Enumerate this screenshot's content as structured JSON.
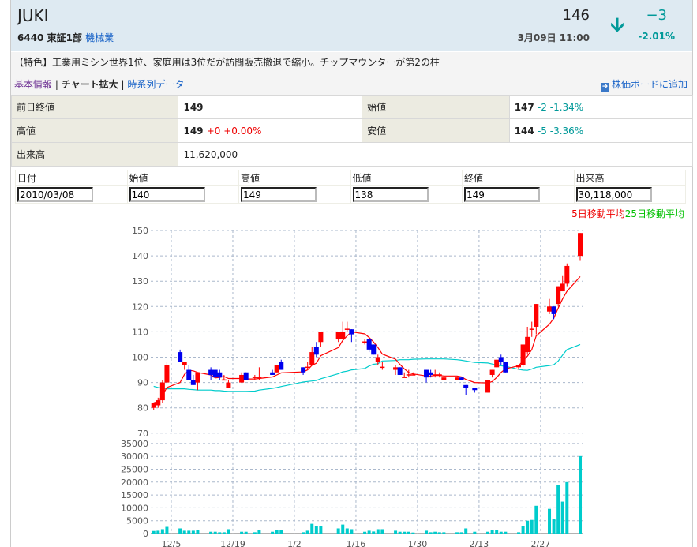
{
  "header": {
    "name": "JUKI",
    "code": "6440",
    "market": "東証1部",
    "industry": "機械業",
    "price": "146",
    "time": "3月09日 11:00",
    "change": "−3",
    "change_pct": "-2.01%",
    "direction_icon": "arrow-down-icon"
  },
  "description": "【特色】工業用ミシン世界1位、家庭用は3位だが訪問販売撤退で縮小。チップマウンターが第2の柱",
  "links": {
    "basic": "基本情報",
    "sep1": "|",
    "chart": "チャート拡大",
    "sep2": "|",
    "timeseries": "時系列データ",
    "add_board": "株価ボードに追加"
  },
  "info": {
    "prev_close_label": "前日終値",
    "prev_close": "149",
    "open_label": "始値",
    "open": "147",
    "open_chg": "-2 -1.34%",
    "high_label": "高値",
    "high": "149",
    "high_chg": "+0 +0.00%",
    "low_label": "安値",
    "low": "144",
    "low_chg": "-5 -3.36%",
    "volume_label": "出来高",
    "volume": "11,620,000"
  },
  "form": {
    "headers": [
      "日付",
      "始値",
      "高値",
      "低値",
      "終値",
      "出来高"
    ],
    "values": [
      "2010/03/08",
      "140",
      "149",
      "138",
      "149",
      "30,118,000"
    ]
  },
  "legend": {
    "ma5": "5日移動平均",
    "ma25": "25日移動平均"
  },
  "colors": {
    "up": "#ff0000",
    "down": "#0000ee",
    "ma5": "#ff0000",
    "ma25": "#00cccc",
    "volume": "#00cccc",
    "accent": "#009999"
  },
  "chart_data": {
    "type": "candlestick",
    "price_axis": {
      "min": 70,
      "max": 150,
      "step": 10,
      "ticks": [
        "150",
        "140",
        "130",
        "120",
        "110",
        "100",
        "90",
        "80",
        "70"
      ]
    },
    "volume_axis": {
      "min": 0,
      "max": 35000,
      "step": 5000,
      "ticks": [
        "35000",
        "30000",
        "25000",
        "20000",
        "15000",
        "10000",
        "5000",
        "0"
      ]
    },
    "x_ticks": [
      "12/5",
      "12/19",
      "1/2",
      "1/16",
      "1/30",
      "2/13",
      "2/27"
    ],
    "grid": true,
    "candles": [
      {
        "d": "12/1",
        "o": 80,
        "h": 82,
        "l": 79,
        "c": 82,
        "v": 1000
      },
      {
        "d": "12/2",
        "o": 81,
        "h": 84,
        "l": 80,
        "c": 83,
        "v": 1100
      },
      {
        "d": "12/3",
        "o": 83,
        "h": 91,
        "l": 82,
        "c": 90,
        "v": 1700
      },
      {
        "d": "12/4",
        "o": 90,
        "h": 98,
        "l": 90,
        "c": 97,
        "v": 2600
      },
      {
        "d": "12/7",
        "o": 102,
        "h": 103,
        "l": 98,
        "c": 98,
        "v": 2000
      },
      {
        "d": "12/8",
        "o": 97,
        "h": 98,
        "l": 95,
        "c": 98,
        "v": 1100
      },
      {
        "d": "12/9",
        "o": 95,
        "h": 97,
        "l": 91,
        "c": 91,
        "v": 1100
      },
      {
        "d": "12/10",
        "o": 91,
        "h": 93,
        "l": 89,
        "c": 89,
        "v": 1100
      },
      {
        "d": "12/11",
        "o": 90,
        "h": 94,
        "l": 87,
        "c": 94,
        "v": 1300
      },
      {
        "d": "12/14",
        "o": 95,
        "h": 96,
        "l": 91,
        "c": 93,
        "v": 700
      },
      {
        "d": "12/15",
        "o": 95,
        "h": 95,
        "l": 92,
        "c": 92,
        "v": 700
      },
      {
        "d": "12/16",
        "o": 94,
        "h": 95,
        "l": 91,
        "c": 92,
        "v": 500
      },
      {
        "d": "12/17",
        "o": 91,
        "h": 93,
        "l": 91,
        "c": 91,
        "v": 500
      },
      {
        "d": "12/18",
        "o": 88,
        "h": 91,
        "l": 88,
        "c": 90,
        "v": 1700
      },
      {
        "d": "12/21",
        "o": 90,
        "h": 94,
        "l": 90,
        "c": 93,
        "v": 700
      },
      {
        "d": "12/22",
        "o": 94,
        "h": 94,
        "l": 91,
        "c": 91,
        "v": 700
      },
      {
        "d": "12/24",
        "o": 92,
        "h": 93,
        "l": 91,
        "c": 92,
        "v": 500
      },
      {
        "d": "12/25",
        "o": 92,
        "h": 96,
        "l": 91,
        "c": 92,
        "v": 1300
      },
      {
        "d": "12/28",
        "o": 94,
        "h": 95,
        "l": 93,
        "c": 93,
        "v": 700
      },
      {
        "d": "12/29",
        "o": 94,
        "h": 97,
        "l": 94,
        "c": 97,
        "v": 1300
      },
      {
        "d": "12/30",
        "o": 98,
        "h": 99,
        "l": 95,
        "c": 95,
        "v": 1300
      },
      {
        "d": "1/4",
        "o": 96,
        "h": 96,
        "l": 93,
        "c": 94,
        "v": 500
      },
      {
        "d": "1/5",
        "o": 96,
        "h": 98,
        "l": 95,
        "c": 96,
        "v": 1100
      },
      {
        "d": "1/6",
        "o": 97,
        "h": 104,
        "l": 97,
        "c": 102,
        "v": 3800
      },
      {
        "d": "1/7",
        "o": 104,
        "h": 106,
        "l": 100,
        "c": 101,
        "v": 3000
      },
      {
        "d": "1/8",
        "o": 106,
        "h": 110,
        "l": 104,
        "c": 110,
        "v": 3000
      },
      {
        "d": "1/12",
        "o": 107,
        "h": 110,
        "l": 106,
        "c": 110,
        "v": 2000
      },
      {
        "d": "1/13",
        "o": 107,
        "h": 114,
        "l": 107,
        "c": 110,
        "v": 3500
      },
      {
        "d": "1/14",
        "o": 111,
        "h": 114,
        "l": 110,
        "c": 111,
        "v": 2000
      },
      {
        "d": "1/15",
        "o": 111,
        "h": 111,
        "l": 106,
        "c": 109,
        "v": 1700
      },
      {
        "d": "1/18",
        "o": 106,
        "h": 107,
        "l": 105,
        "c": 106,
        "v": 700
      },
      {
        "d": "1/19",
        "o": 107,
        "h": 107,
        "l": 102,
        "c": 103,
        "v": 1100
      },
      {
        "d": "1/20",
        "o": 105,
        "h": 105,
        "l": 101,
        "c": 101,
        "v": 800
      },
      {
        "d": "1/21",
        "o": 98,
        "h": 101,
        "l": 97,
        "c": 100,
        "v": 1700
      },
      {
        "d": "1/22",
        "o": 96,
        "h": 98,
        "l": 95,
        "c": 96,
        "v": 1700
      },
      {
        "d": "1/25",
        "o": 95,
        "h": 97,
        "l": 93,
        "c": 96,
        "v": 1100
      },
      {
        "d": "1/26",
        "o": 96,
        "h": 96,
        "l": 93,
        "c": 93,
        "v": 700
      },
      {
        "d": "1/27",
        "o": 92,
        "h": 94,
        "l": 92,
        "c": 92,
        "v": 700
      },
      {
        "d": "1/28",
        "o": 93,
        "h": 95,
        "l": 92,
        "c": 93,
        "v": 700
      },
      {
        "d": "1/29",
        "o": 93,
        "h": 94,
        "l": 93,
        "c": 93,
        "v": 400
      },
      {
        "d": "2/1",
        "o": 95,
        "h": 95,
        "l": 90,
        "c": 92,
        "v": 1100
      },
      {
        "d": "2/2",
        "o": 94,
        "h": 95,
        "l": 92,
        "c": 93,
        "v": 500
      },
      {
        "d": "2/3",
        "o": 93,
        "h": 95,
        "l": 92,
        "c": 93,
        "v": 700
      },
      {
        "d": "2/4",
        "o": 93,
        "h": 94,
        "l": 92,
        "c": 93,
        "v": 500
      },
      {
        "d": "2/5",
        "o": 91,
        "h": 92,
        "l": 91,
        "c": 92,
        "v": 500
      },
      {
        "d": "2/8",
        "o": 91,
        "h": 92,
        "l": 91,
        "c": 92,
        "v": 500
      },
      {
        "d": "2/9",
        "o": 92,
        "h": 92,
        "l": 91,
        "c": 91,
        "v": 500
      },
      {
        "d": "2/10",
        "o": 89,
        "h": 89,
        "l": 85,
        "c": 88,
        "v": 2000
      },
      {
        "d": "2/12",
        "o": 88,
        "h": 88,
        "l": 86,
        "c": 87,
        "v": 700
      },
      {
        "d": "2/15",
        "o": 86,
        "h": 91,
        "l": 86,
        "c": 91,
        "v": 700
      },
      {
        "d": "2/16",
        "o": 93,
        "h": 95,
        "l": 92,
        "c": 95,
        "v": 1400
      },
      {
        "d": "2/17",
        "o": 96,
        "h": 99,
        "l": 96,
        "c": 99,
        "v": 1400
      },
      {
        "d": "2/18",
        "o": 100,
        "h": 101,
        "l": 97,
        "c": 98,
        "v": 700
      },
      {
        "d": "2/19",
        "o": 98,
        "h": 98,
        "l": 94,
        "c": 94,
        "v": 700
      },
      {
        "d": "2/22",
        "o": 96,
        "h": 97,
        "l": 95,
        "c": 97,
        "v": 500
      },
      {
        "d": "2/23",
        "o": 97,
        "h": 105,
        "l": 96,
        "c": 105,
        "v": 3000
      },
      {
        "d": "2/24",
        "o": 102,
        "h": 112,
        "l": 101,
        "c": 108,
        "v": 5000
      },
      {
        "d": "2/25",
        "o": 111,
        "h": 114,
        "l": 108,
        "c": 111,
        "v": 5300
      },
      {
        "d": "2/26",
        "o": 112,
        "h": 121,
        "l": 109,
        "c": 121,
        "v": 10800
      },
      {
        "d": "3/1",
        "o": 118,
        "h": 123,
        "l": 117,
        "c": 120,
        "v": 9600
      },
      {
        "d": "3/2",
        "o": 120,
        "h": 120,
        "l": 115,
        "c": 117,
        "v": 5600
      },
      {
        "d": "3/3",
        "o": 121,
        "h": 128,
        "l": 120,
        "c": 128,
        "v": 18900
      },
      {
        "d": "3/4",
        "o": 126,
        "h": 132,
        "l": 126,
        "c": 129,
        "v": 12400
      },
      {
        "d": "3/5",
        "o": 129,
        "h": 137,
        "l": 128,
        "c": 136,
        "v": 20000
      },
      {
        "d": "3/8",
        "o": 140,
        "h": 149,
        "l": 138,
        "c": 149,
        "v": 30118
      }
    ],
    "ma25": [
      88.5,
      88,
      87.8,
      87.5,
      87.5,
      87.5,
      87.3,
      87.2,
      87,
      87,
      86.8,
      86.8,
      86.6,
      86.5,
      86.5,
      86.5,
      86.6,
      87,
      87.7,
      88,
      88.4,
      90.2,
      90.4,
      90.6,
      90.8,
      91.5,
      93.5,
      94.2,
      94.5,
      95,
      95.5,
      96.5,
      97.2,
      97.4,
      98.5,
      98.7,
      99,
      99,
      99,
      99.2,
      99.3,
      99.3,
      99.3,
      99.3,
      99.3,
      99,
      98.8,
      98.5,
      97.9,
      97.7,
      97.3,
      96.8,
      96.6,
      96.4,
      95.2,
      94.9,
      94.8,
      95.3,
      96,
      96.7,
      97,
      98.5,
      100.8,
      103,
      105
    ]
  }
}
